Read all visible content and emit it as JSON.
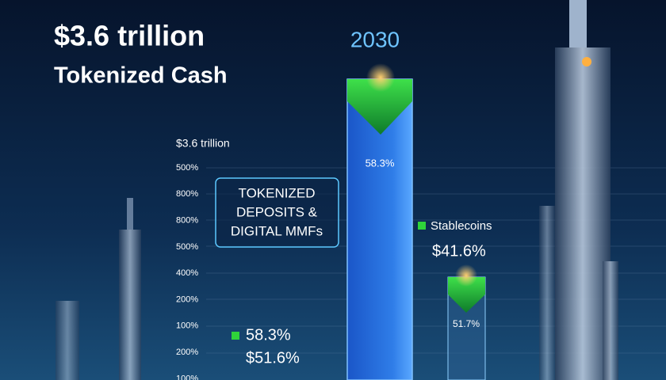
{
  "header": {
    "title": "$3.6 trillion",
    "subtitle": "Tokenized Cash",
    "year": "2030"
  },
  "axis": {
    "header": "$3.6 trillion",
    "labels": [
      "500%",
      "800%",
      "800%",
      "500%",
      "400%",
      "200%",
      "100%",
      "200%",
      "100%"
    ]
  },
  "callout": {
    "lines": [
      "TOKENIZED",
      "DEPOSITS &",
      "DIGITAL MMFs"
    ]
  },
  "tall_bar": {
    "label": "58.3%"
  },
  "stablecoins": {
    "name": "Stablecoins",
    "value": "$41.6%",
    "bar_label": "51.7%"
  },
  "left_legend": {
    "value": "58.3%",
    "sub_value": "$51.6%"
  }
}
